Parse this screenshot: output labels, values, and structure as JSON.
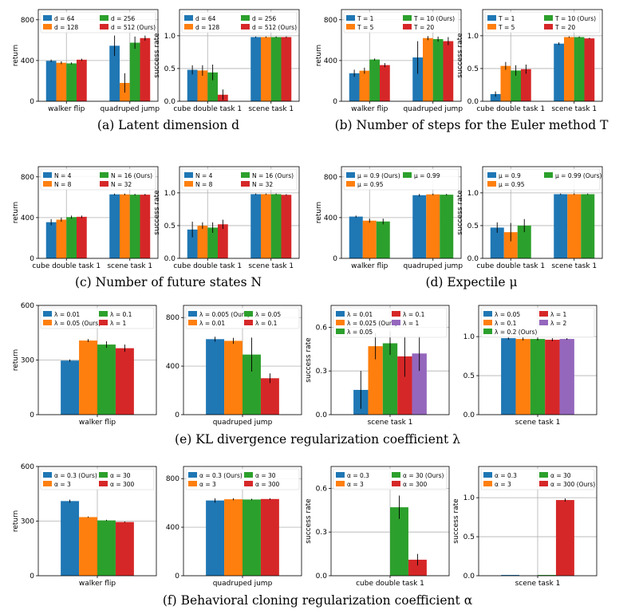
{
  "colors": {
    "blue": "#1f77b4",
    "orange": "#ff7f0e",
    "green": "#2ca02c",
    "red": "#d62728",
    "purple": "#9467bd"
  },
  "captions": [
    "(a) Latent dimension d",
    "(b) Number of steps for the Euler method T",
    "(c) Number of future states N",
    "(d) Expectile μ",
    "(e) KL divergence regularization coefficient λ",
    "(f) Behavioral cloning regularization coefficient α"
  ],
  "chart_data": [
    {
      "type": "bar",
      "panel": "a-left",
      "ylabel": "return",
      "ylim": [
        0,
        900
      ],
      "yticks": [
        0,
        400,
        800
      ],
      "grid": true,
      "legend_placement": "top-left",
      "legend_ncol": 2,
      "categories": [
        "walker flip",
        "quadruped jump"
      ],
      "series": [
        {
          "name": "d = 64",
          "values": [
            397,
            545
          ],
          "errors": [
            12,
            100
          ]
        },
        {
          "name": "d = 128",
          "values": [
            378,
            180
          ],
          "errors": [
            14,
            95
          ]
        },
        {
          "name": "d = 256",
          "values": [
            372,
            575
          ],
          "errors": [
            10,
            60
          ]
        },
        {
          "name": "d = 512 (Ours)",
          "values": [
            408,
            620
          ],
          "errors": [
            10,
            25
          ]
        }
      ]
    },
    {
      "type": "bar",
      "panel": "a-right",
      "ylabel": "success rate",
      "ylim": [
        0,
        1.4
      ],
      "yticks": [
        0.0,
        0.5,
        1.0
      ],
      "grid": true,
      "legend_placement": "top-left",
      "legend_ncol": 2,
      "categories": [
        "cube double task 1",
        "scene task 1"
      ],
      "series": [
        {
          "name": "d = 64",
          "values": [
            0.48,
            0.98
          ],
          "errors": [
            0.07,
            0.01
          ]
        },
        {
          "name": "d = 128",
          "values": [
            0.47,
            0.98
          ],
          "errors": [
            0.08,
            0.01
          ]
        },
        {
          "name": "d = 256",
          "values": [
            0.44,
            0.98
          ],
          "errors": [
            0.12,
            0.01
          ]
        },
        {
          "name": "d = 512 (Ours)",
          "values": [
            0.1,
            0.98
          ],
          "errors": [
            0.08,
            0.01
          ]
        }
      ]
    },
    {
      "type": "bar",
      "panel": "b-left",
      "ylabel": "return",
      "ylim": [
        0,
        900
      ],
      "yticks": [
        0,
        400,
        800
      ],
      "grid": true,
      "legend_placement": "top-left",
      "legend_ncol": 2,
      "categories": [
        "walker flip",
        "quadruped jump"
      ],
      "series": [
        {
          "name": "T = 1",
          "values": [
            275,
            430
          ],
          "errors": [
            35,
            160
          ]
        },
        {
          "name": "T = 5",
          "values": [
            300,
            620
          ],
          "errors": [
            30,
            20
          ]
        },
        {
          "name": "T = 10 (Ours)",
          "values": [
            410,
            610
          ],
          "errors": [
            10,
            25
          ]
        },
        {
          "name": "T = 20",
          "values": [
            355,
            590
          ],
          "errors": [
            20,
            40
          ]
        }
      ]
    },
    {
      "type": "bar",
      "panel": "b-right",
      "ylabel": "success rate",
      "ylim": [
        0,
        1.4
      ],
      "yticks": [
        0.0,
        0.5,
        1.0
      ],
      "grid": true,
      "legend_placement": "top-left",
      "legend_ncol": 2,
      "categories": [
        "cube double task 1",
        "scene task 1"
      ],
      "series": [
        {
          "name": "T = 1",
          "values": [
            0.11,
            0.88
          ],
          "errors": [
            0.04,
            0.02
          ]
        },
        {
          "name": "T = 5",
          "values": [
            0.54,
            0.98
          ],
          "errors": [
            0.06,
            0.01
          ]
        },
        {
          "name": "T = 10 (Ours)",
          "values": [
            0.47,
            0.98
          ],
          "errors": [
            0.08,
            0.01
          ]
        },
        {
          "name": "T = 20",
          "values": [
            0.49,
            0.96
          ],
          "errors": [
            0.07,
            0.01
          ]
        }
      ]
    },
    {
      "type": "bar",
      "panel": "c-left",
      "ylabel": "return",
      "ylim": [
        0,
        900
      ],
      "yticks": [
        0,
        400,
        800
      ],
      "grid": true,
      "legend_placement": "top-left",
      "legend_ncol": 2,
      "categories": [
        "cube double task 1",
        "scene task 1"
      ],
      "series": [
        {
          "name": "N = 4",
          "values": [
            355,
            628
          ],
          "errors": [
            30,
            8
          ]
        },
        {
          "name": "N = 8",
          "values": [
            380,
            628
          ],
          "errors": [
            20,
            8
          ]
        },
        {
          "name": "N = 16 (Ours)",
          "values": [
            405,
            625
          ],
          "errors": [
            15,
            8
          ]
        },
        {
          "name": "N = 32",
          "values": [
            408,
            625
          ],
          "errors": [
            12,
            8
          ]
        }
      ]
    },
    {
      "type": "bar",
      "panel": "c-right",
      "ylabel": "success rate",
      "ylim": [
        0,
        1.4
      ],
      "yticks": [
        0.0,
        0.5,
        1.0
      ],
      "grid": true,
      "legend_placement": "top-left",
      "legend_ncol": 2,
      "categories": [
        "cube double task 1",
        "scene task 1"
      ],
      "series": [
        {
          "name": "N = 4",
          "values": [
            0.44,
            0.98
          ],
          "errors": [
            0.12,
            0.01
          ]
        },
        {
          "name": "N = 8",
          "values": [
            0.5,
            0.98
          ],
          "errors": [
            0.05,
            0.01
          ]
        },
        {
          "name": "N = 16 (Ours)",
          "values": [
            0.47,
            0.98
          ],
          "errors": [
            0.08,
            0.01
          ]
        },
        {
          "name": "N = 32",
          "values": [
            0.52,
            0.97
          ],
          "errors": [
            0.07,
            0.01
          ]
        }
      ]
    },
    {
      "type": "bar",
      "panel": "d-left",
      "ylabel": "return",
      "ylim": [
        0,
        900
      ],
      "yticks": [
        0,
        400,
        800
      ],
      "grid": true,
      "legend_placement": "top-left",
      "legend_ncol": 2,
      "categories": [
        "walker flip",
        "quadruped jump"
      ],
      "series": [
        {
          "name": "μ = 0.9 (Ours)",
          "values": [
            410,
            620
          ],
          "errors": [
            10,
            12
          ]
        },
        {
          "name": "μ = 0.95",
          "values": [
            370,
            628
          ],
          "errors": [
            20,
            8
          ]
        },
        {
          "name": "μ = 0.99",
          "values": [
            362,
            625
          ],
          "errors": [
            28,
            8
          ]
        }
      ]
    },
    {
      "type": "bar",
      "panel": "d-right",
      "ylabel": "success rate",
      "ylim": [
        0,
        1.4
      ],
      "yticks": [
        0.0,
        0.5,
        1.0
      ],
      "grid": true,
      "legend_placement": "top-left",
      "legend_ncol": 2,
      "categories": [
        "cube double task 1",
        "scene task 1"
      ],
      "series": [
        {
          "name": "μ = 0.9",
          "values": [
            0.47,
            0.98
          ],
          "errors": [
            0.08,
            0.01
          ]
        },
        {
          "name": "μ = 0.95",
          "values": [
            0.4,
            0.98
          ],
          "errors": [
            0.14,
            0.01
          ]
        },
        {
          "name": "μ = 0.99 (Ours)",
          "values": [
            0.5,
            0.98
          ],
          "errors": [
            0.1,
            0.01
          ]
        }
      ]
    },
    {
      "type": "bar",
      "panel": "e-1",
      "ylabel": "return",
      "ylim": [
        0,
        600
      ],
      "yticks": [
        0,
        300,
        600
      ],
      "grid": true,
      "legend_placement": "top-left",
      "legend_ncol": 2,
      "categories": [
        "walker flip"
      ],
      "series": [
        {
          "name": "λ = 0.01",
          "values": [
            297
          ],
          "errors": [
            6
          ]
        },
        {
          "name": "λ = 0.05 (Ours)",
          "values": [
            407
          ],
          "errors": [
            8
          ]
        },
        {
          "name": "λ = 0.1",
          "values": [
            385
          ],
          "errors": [
            18
          ]
        },
        {
          "name": "λ = 1",
          "values": [
            365
          ],
          "errors": [
            20
          ]
        }
      ]
    },
    {
      "type": "bar",
      "panel": "e-2",
      "ylabel": "",
      "ylim": [
        0,
        900
      ],
      "yticks": [
        0,
        400,
        800
      ],
      "grid": true,
      "legend_placement": "top-left",
      "legend_ncol": 2,
      "categories": [
        "quadruped jump"
      ],
      "series": [
        {
          "name": "λ = 0.005 (Ours)",
          "values": [
            622
          ],
          "errors": [
            20
          ]
        },
        {
          "name": "λ = 0.01",
          "values": [
            608
          ],
          "errors": [
            25
          ]
        },
        {
          "name": "λ = 0.05",
          "values": [
            495
          ],
          "errors": [
            140
          ]
        },
        {
          "name": "λ = 0.1",
          "values": [
            300
          ],
          "errors": [
            40
          ]
        }
      ]
    },
    {
      "type": "bar",
      "panel": "e-3",
      "ylabel": "success rate",
      "ylim": [
        0,
        0.75
      ],
      "yticks": [
        0.0,
        0.3,
        0.6
      ],
      "grid": true,
      "legend_placement": "top-left",
      "legend_ncol": 2,
      "categories": [
        "scene task 1"
      ],
      "series": [
        {
          "name": "λ = 0.01",
          "values": [
            0.17
          ],
          "errors": [
            0.13
          ]
        },
        {
          "name": "λ = 0.025 (Ours)",
          "values": [
            0.47
          ],
          "errors": [
            0.09
          ]
        },
        {
          "name": "λ = 0.05",
          "values": [
            0.49
          ],
          "errors": [
            0.08
          ]
        },
        {
          "name": "λ = 0.1",
          "values": [
            0.4
          ],
          "errors": [
            0.14
          ]
        },
        {
          "name": "λ = 1",
          "values": [
            0.42
          ],
          "errors": [
            0.12
          ]
        }
      ]
    },
    {
      "type": "bar",
      "panel": "e-4",
      "ylabel": "",
      "ylim": [
        0,
        1.4
      ],
      "yticks": [
        0.0,
        0.5,
        1.0
      ],
      "grid": true,
      "legend_placement": "top-left",
      "legend_ncol": 2,
      "categories": [
        "scene task 1"
      ],
      "series": [
        {
          "name": "λ = 0.05",
          "values": [
            0.98
          ],
          "errors": [
            0.02
          ]
        },
        {
          "name": "λ = 0.1",
          "values": [
            0.97
          ],
          "errors": [
            0.02
          ]
        },
        {
          "name": "λ = 0.2 (Ours)",
          "values": [
            0.97
          ],
          "errors": [
            0.02
          ]
        },
        {
          "name": "λ = 1",
          "values": [
            0.96
          ],
          "errors": [
            0.02
          ]
        },
        {
          "name": "λ = 2",
          "values": [
            0.97
          ],
          "errors": [
            0.01
          ]
        }
      ]
    },
    {
      "type": "bar",
      "panel": "f-1",
      "ylabel": "return",
      "ylim": [
        0,
        600
      ],
      "yticks": [
        0,
        300,
        600
      ],
      "grid": true,
      "legend_placement": "top-left",
      "legend_ncol": 2,
      "categories": [
        "walker flip"
      ],
      "series": [
        {
          "name": "α = 0.3 (Ours)",
          "values": [
            410
          ],
          "errors": [
            8
          ]
        },
        {
          "name": "α = 3",
          "values": [
            322
          ],
          "errors": [
            3
          ]
        },
        {
          "name": "α = 30",
          "values": [
            304
          ],
          "errors": [
            3
          ]
        },
        {
          "name": "α = 300",
          "values": [
            295
          ],
          "errors": [
            3
          ]
        }
      ]
    },
    {
      "type": "bar",
      "panel": "f-2",
      "ylabel": "",
      "ylim": [
        0,
        900
      ],
      "yticks": [
        0,
        400,
        800
      ],
      "grid": true,
      "legend_placement": "top-left",
      "legend_ncol": 2,
      "categories": [
        "quadruped jump"
      ],
      "series": [
        {
          "name": "α = 0.3 (Ours)",
          "values": [
            620
          ],
          "errors": [
            18
          ]
        },
        {
          "name": "α = 3",
          "values": [
            630
          ],
          "errors": [
            8
          ]
        },
        {
          "name": "α = 30",
          "values": [
            628
          ],
          "errors": [
            6
          ]
        },
        {
          "name": "α = 300",
          "values": [
            632
          ],
          "errors": [
            6
          ]
        }
      ]
    },
    {
      "type": "bar",
      "panel": "f-3",
      "ylabel": "success rate",
      "ylim": [
        0,
        0.75
      ],
      "yticks": [
        0.0,
        0.3,
        0.6
      ],
      "grid": true,
      "legend_placement": "top-left",
      "legend_ncol": 2,
      "categories": [
        "cube double task 1"
      ],
      "series": [
        {
          "name": "α = 0.3",
          "values": [
            0.0
          ],
          "errors": [
            0.0
          ]
        },
        {
          "name": "α = 3",
          "values": [
            0.0
          ],
          "errors": [
            0.0
          ]
        },
        {
          "name": "α = 30 (Ours)",
          "values": [
            0.47
          ],
          "errors": [
            0.08
          ]
        },
        {
          "name": "α = 300",
          "values": [
            0.11
          ],
          "errors": [
            0.04
          ]
        }
      ]
    },
    {
      "type": "bar",
      "panel": "f-4",
      "ylabel": "success rate",
      "ylim": [
        0,
        1.4
      ],
      "yticks": [
        0.0,
        0.5,
        1.0
      ],
      "grid": true,
      "legend_placement": "top-left",
      "legend_ncol": 2,
      "categories": [
        "scene task 1"
      ],
      "series": [
        {
          "name": "α = 0.3",
          "values": [
            0.01
          ],
          "errors": [
            0.0
          ]
        },
        {
          "name": "α = 3",
          "values": [
            0.0
          ],
          "errors": [
            0.0
          ]
        },
        {
          "name": "α = 30",
          "values": [
            0.01
          ],
          "errors": [
            0.0
          ]
        },
        {
          "name": "α = 300 (Ours)",
          "values": [
            0.97
          ],
          "errors": [
            0.02
          ]
        }
      ]
    }
  ]
}
